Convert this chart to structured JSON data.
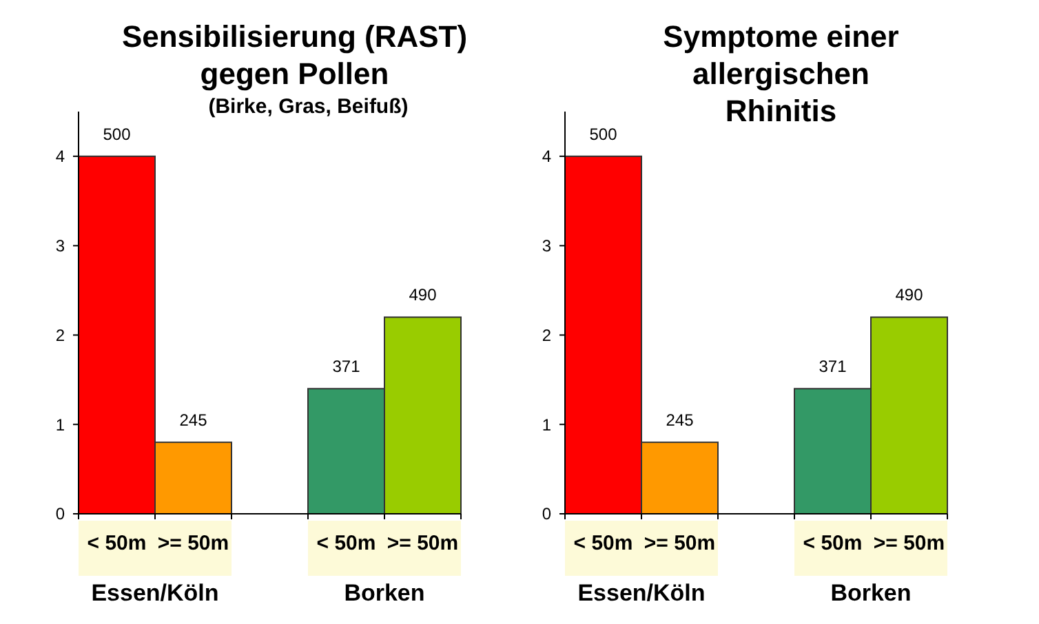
{
  "chart_data": [
    {
      "type": "bar",
      "title": "Sensibilisierung (RAST)\ngegen Pollen",
      "subtitle": "(Birke, Gras, Beifuß)",
      "categories": [
        "< 50m",
        ">= 50m",
        "< 50m",
        ">= 50m"
      ],
      "values": [
        4,
        0.8,
        1.4,
        2.2
      ],
      "colors": [
        "#ff0000",
        "#ff9900",
        "#339966",
        "#99cc00"
      ],
      "ylim": [
        0,
        4.5
      ],
      "yticks": [
        0,
        1,
        2,
        3,
        4
      ],
      "annotations": [
        "500",
        "245",
        "371",
        "490",
        "Essen/Köln",
        "Borken"
      ]
    },
    {
      "type": "bar",
      "title": "Symptome einer\nallergischen\nRhinitis",
      "categories": [
        "< 50m",
        ">= 50m",
        "< 50m",
        ">= 50m"
      ],
      "values": [
        4,
        0.8,
        1.4,
        2.2
      ],
      "colors": [
        "#ff0000",
        "#ff9900",
        "#339966",
        "#99cc00"
      ],
      "ylim": [
        0,
        4.5
      ],
      "yticks": [
        0,
        1,
        2,
        3,
        4
      ],
      "annotations": [
        "500",
        "245",
        "371",
        "490",
        "Essen/Köln",
        "Borken"
      ]
    }
  ]
}
